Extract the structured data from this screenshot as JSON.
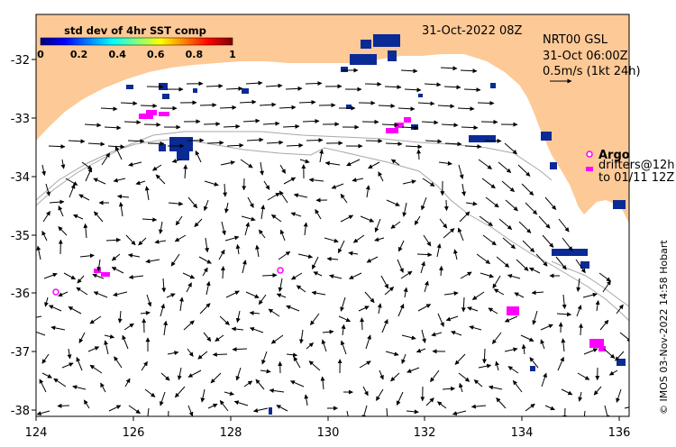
{
  "map": {
    "date_label": "31-Oct-2022 08Z",
    "product": "NRT00 GSL",
    "product_time": "31-Oct 06:00Z",
    "scale_label": "0.5m/s (1kt 24h)",
    "credit": "© IMOS 03-Nov-2022 14:58 Hobart",
    "lon_ticks": [
      "124",
      "126",
      "128",
      "130",
      "132",
      "134",
      "136"
    ],
    "lat_ticks": [
      "-32",
      "-33",
      "-34",
      "-35",
      "-36",
      "-37",
      "-38"
    ],
    "colorbar": {
      "title": "std dev of 4hr SST comp",
      "ticks": [
        "0",
        "0.2",
        "0.4",
        "0.6",
        "0.8",
        "1"
      ],
      "colormap": "jet"
    },
    "legend": {
      "argo_label": "Argo",
      "drifters_line1": "drifters@12h",
      "drifters_line2": "to 01/11 12Z"
    },
    "colors": {
      "land": "#fdc996",
      "sea": "#ffffff",
      "sst_patches": "#0a2a96",
      "markers": "#ff00ff",
      "shelf_contour": "#a8a8a8"
    }
  }
}
